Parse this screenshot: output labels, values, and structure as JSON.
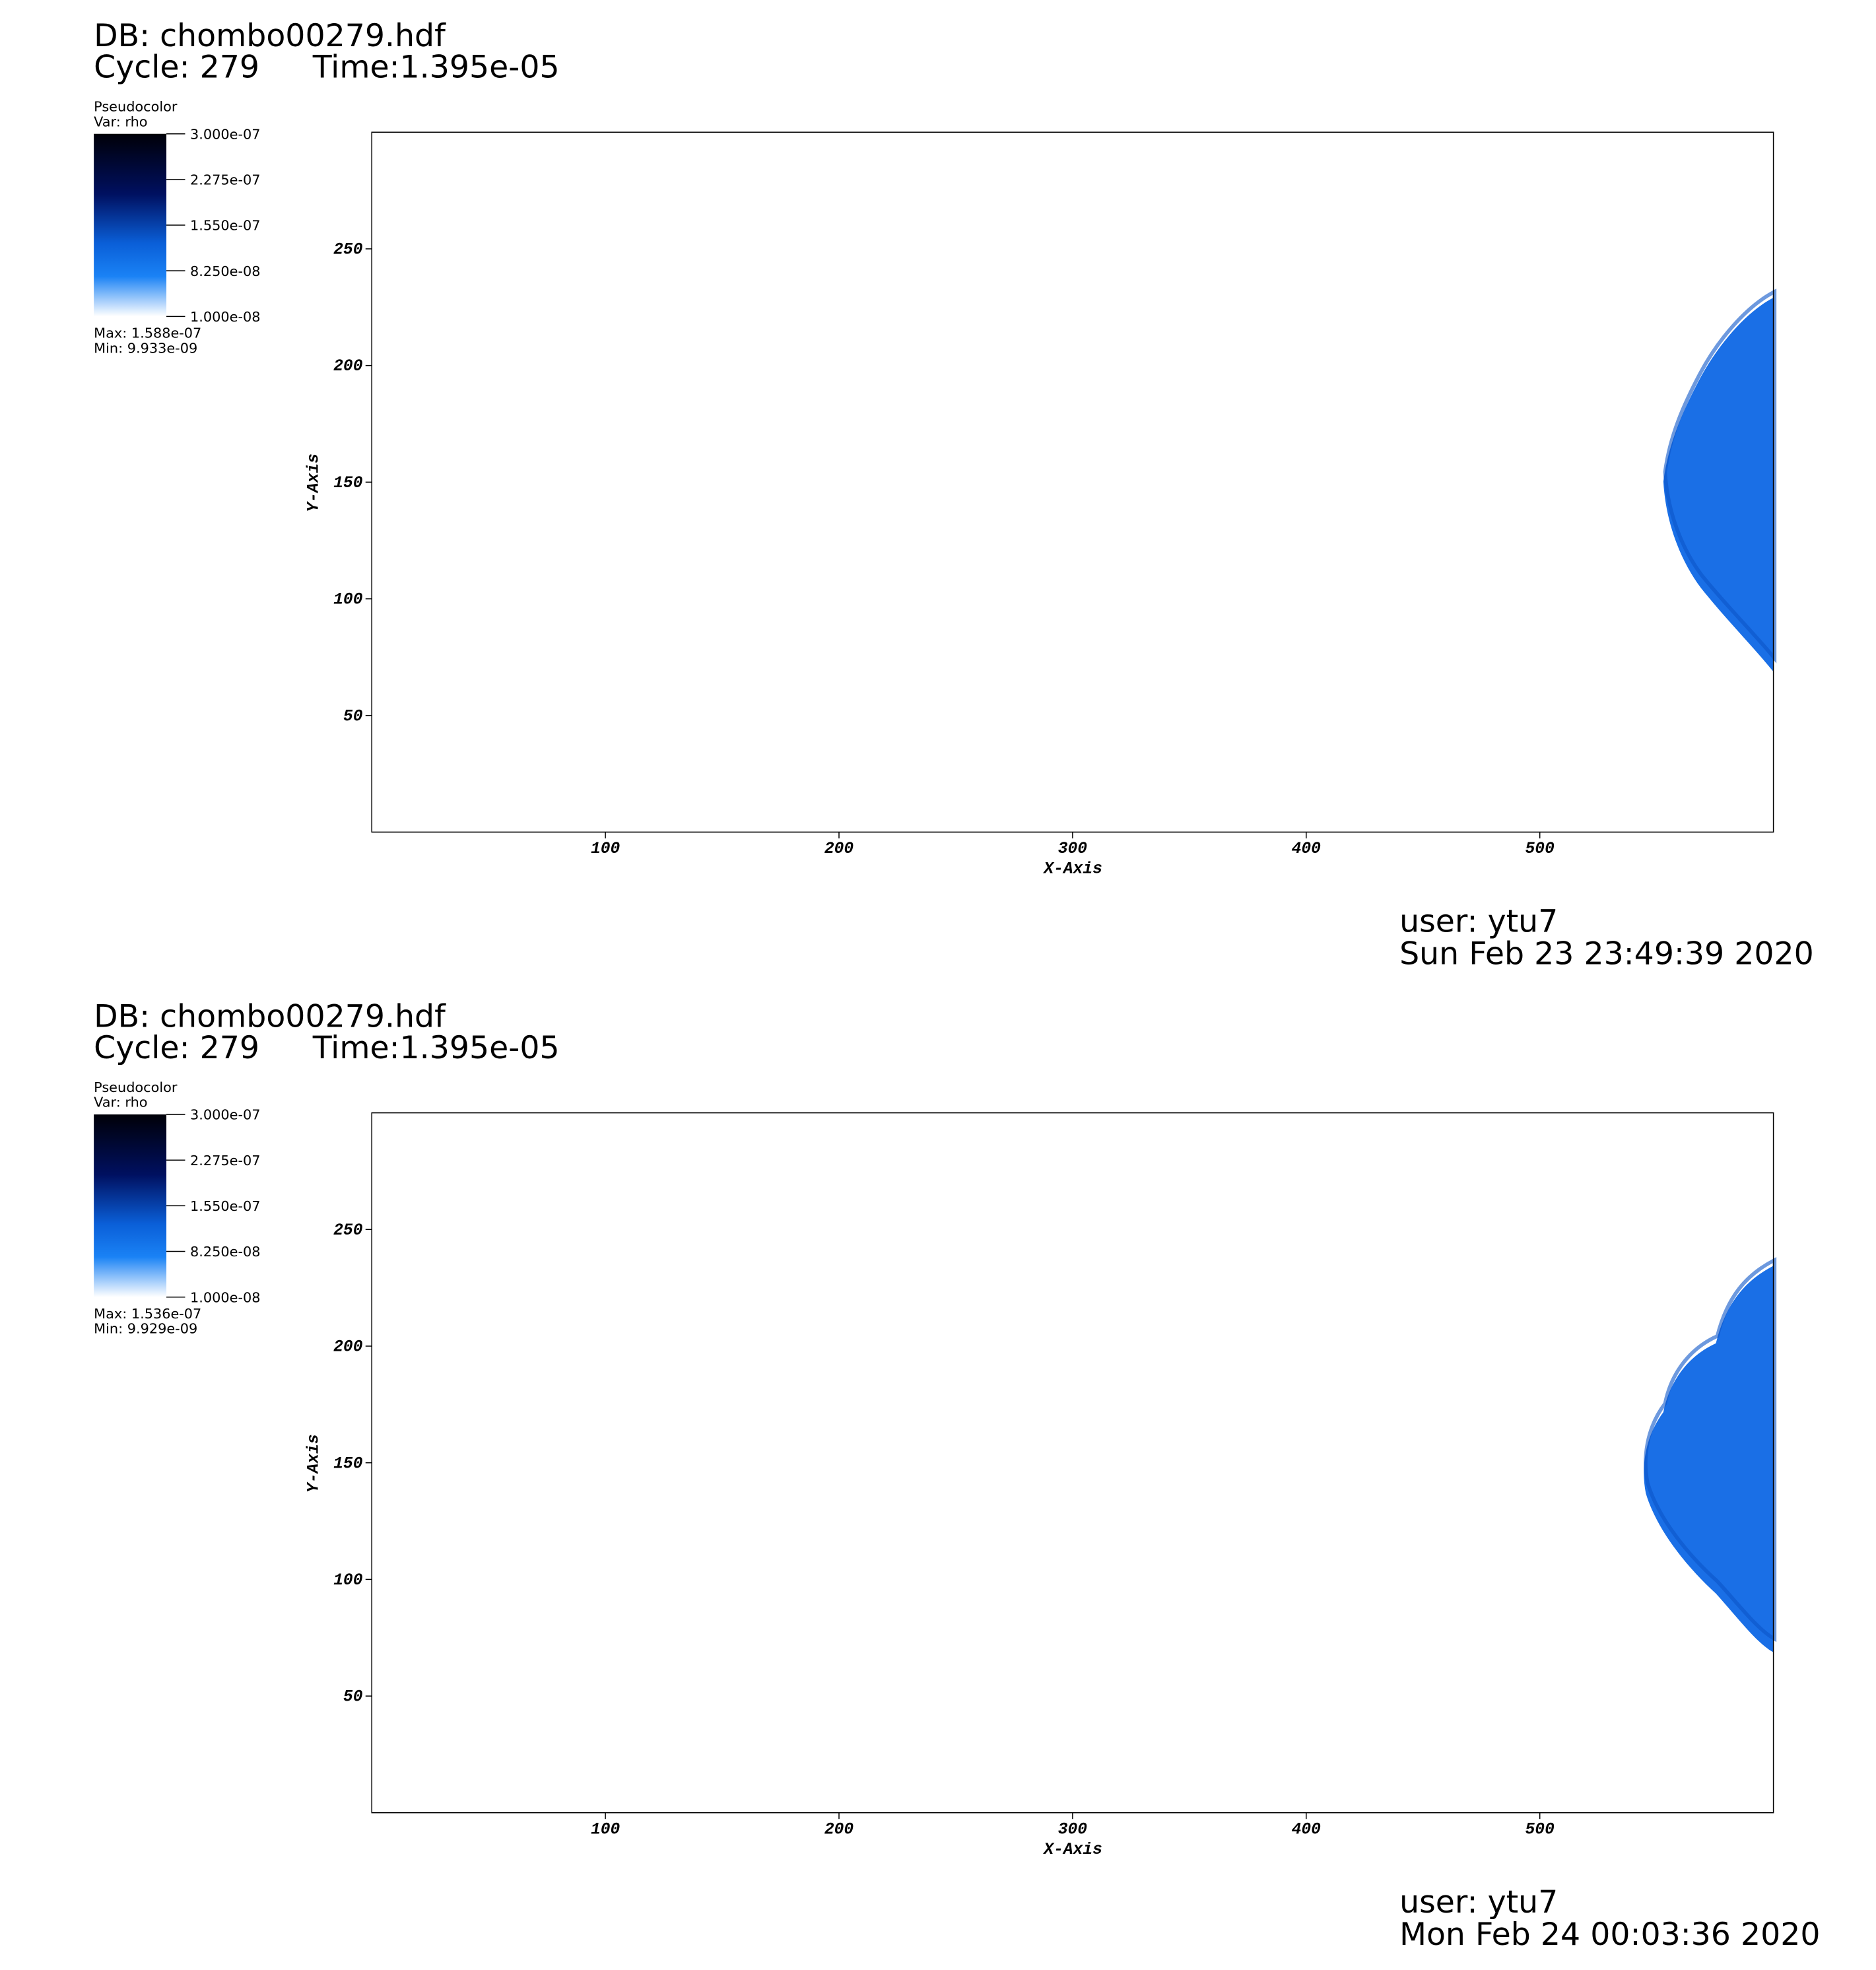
{
  "chart_data": [
    {
      "type": "pseudocolor",
      "title": "DB: chombo00279.hdf",
      "cycle_label": "Cycle: 279",
      "time_label": "Time:1.395e-05",
      "legend_title": "Pseudocolor",
      "legend_var": "Var: rho",
      "colorbar_ticks": [
        {
          "value": 3e-07,
          "label": "3.000e-07"
        },
        {
          "value": 2.275e-07,
          "label": "2.275e-07"
        },
        {
          "value": 1.55e-07,
          "label": "1.550e-07"
        },
        {
          "value": 8.25e-08,
          "label": "8.250e-08"
        },
        {
          "value": 1e-08,
          "label": "1.000e-08"
        }
      ],
      "max_label": "Max:  1.588e-07",
      "min_label": "Min:  9.933e-09",
      "xlabel": "X-Axis",
      "ylabel": "Y-Axis",
      "xlim": [
        0,
        600
      ],
      "ylim": [
        0,
        300
      ],
      "xticks": [
        100,
        200,
        300,
        400,
        500
      ],
      "yticks": [
        50,
        100,
        150,
        200,
        250
      ],
      "user": "user: ytu7",
      "date": "Sun Feb 23 23:49:39 2020"
    },
    {
      "type": "pseudocolor",
      "title": "DB: chombo00279.hdf",
      "cycle_label": "Cycle: 279",
      "time_label": "Time:1.395e-05",
      "legend_title": "Pseudocolor",
      "legend_var": "Var: rho",
      "colorbar_ticks": [
        {
          "value": 3e-07,
          "label": "3.000e-07"
        },
        {
          "value": 2.275e-07,
          "label": "2.275e-07"
        },
        {
          "value": 1.55e-07,
          "label": "1.550e-07"
        },
        {
          "value": 8.25e-08,
          "label": "8.250e-08"
        },
        {
          "value": 1e-08,
          "label": "1.000e-08"
        }
      ],
      "max_label": "Max:  1.536e-07",
      "min_label": "Min:  9.929e-09",
      "xlabel": "X-Axis",
      "ylabel": "Y-Axis",
      "xlim": [
        0,
        600
      ],
      "ylim": [
        0,
        300
      ],
      "xticks": [
        100,
        200,
        300,
        400,
        500
      ],
      "yticks": [
        50,
        100,
        150,
        200,
        250
      ],
      "user": "user: ytu7",
      "date": "Mon Feb 24 00:03:36 2020"
    }
  ]
}
